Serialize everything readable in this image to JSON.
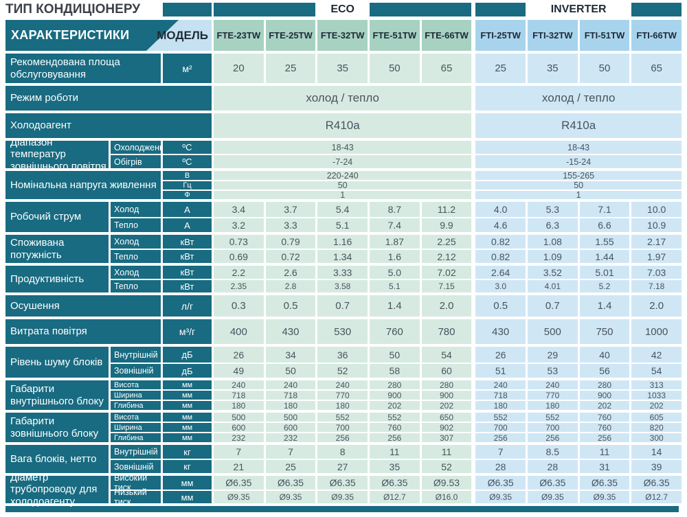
{
  "colors": {
    "teal": "#186b81",
    "eco_header": "#a7d1c1",
    "eco_cell": "#d7eae2",
    "inverter_header": "#a8d3ec",
    "inverter_cell": "#cfe6f5",
    "model_bg": "#c6e1f1",
    "dark_text": "#1d2b37",
    "data_text": "#47545c"
  },
  "header": {
    "type_label": "ТИП КОНДИЦІОНЕРУ",
    "groups": [
      {
        "name": "ECO",
        "cols": 5
      },
      {
        "name": "INVERTER",
        "cols": 4
      }
    ],
    "characteristics_label": "ХАРАКТЕРИСТИКИ",
    "model_label": "МОДЕЛЬ",
    "models": [
      "FTE-23TW",
      "FTE-25TW",
      "FTE-32TW",
      "FTE-51TW",
      "FTE-66TW",
      "FTI-25TW",
      "FTI-32TW",
      "FTI-51TW",
      "FTI-66TW"
    ]
  },
  "table": {
    "rows": [
      {
        "kind": "simple",
        "label": "Рекомендована площа обслуговування",
        "unit": "м²",
        "values": [
          "20",
          "25",
          "35",
          "50",
          "65",
          "25",
          "35",
          "50",
          "65"
        ]
      },
      {
        "kind": "merged",
        "label": "Режим роботи",
        "size": "lg",
        "values": [
          "холод / тепло",
          "холод / тепло"
        ]
      },
      {
        "kind": "merged",
        "label": "Холодоагент",
        "size": "lg",
        "values": [
          "R410a",
          "R410a"
        ]
      },
      {
        "kind": "subs-merged",
        "label": "Діапазон температур зовнішнього повітря",
        "subs": [
          {
            "name": "Охолодження",
            "unit": "ºС",
            "values": [
              "18-43",
              "18-43"
            ]
          },
          {
            "name": "Обігрів",
            "unit": "ºС",
            "values": [
              "-7-24",
              "-15-24"
            ]
          }
        ]
      },
      {
        "kind": "units-merged",
        "label": "Номінальна напруга живлення",
        "subs": [
          {
            "unit": "В",
            "values": [
              "220-240",
              "155-265"
            ]
          },
          {
            "unit": "Гц",
            "values": [
              "50",
              "50"
            ]
          },
          {
            "unit": "Ф",
            "values": [
              "1",
              "1"
            ]
          }
        ]
      },
      {
        "kind": "subs",
        "label": "Робочий струм",
        "subs": [
          {
            "name": "Холод",
            "unit": "А",
            "values": [
              "3.4",
              "3.7",
              "5.4",
              "8.7",
              "11.2",
              "4.0",
              "5.3",
              "7.1",
              "10.0"
            ]
          },
          {
            "name": "Тепло",
            "unit": "А",
            "values": [
              "3.2",
              "3.3",
              "5.1",
              "7.4",
              "9.9",
              "4.6",
              "6.3",
              "6.6",
              "10.9"
            ]
          }
        ]
      },
      {
        "kind": "subs",
        "label": "Споживана потужність",
        "subs": [
          {
            "name": "Холод",
            "unit": "кВт",
            "values": [
              "0.73",
              "0.79",
              "1.16",
              "1.87",
              "2.25",
              "0.82",
              "1.08",
              "1.55",
              "2.17"
            ]
          },
          {
            "name": "Тепло",
            "unit": "кВт",
            "values": [
              "0.69",
              "0.72",
              "1.34",
              "1.6",
              "2.12",
              "0.82",
              "1.09",
              "1.44",
              "1.97"
            ]
          }
        ]
      },
      {
        "kind": "subs",
        "label": "Продуктивність",
        "subs": [
          {
            "name": "Холод",
            "unit": "кВт",
            "values": [
              "2.2",
              "2.6",
              "3.33",
              "5.0",
              "7.02",
              "2.64",
              "3.52",
              "5.01",
              "7.03"
            ]
          },
          {
            "name": "Тепло",
            "unit": "кВт",
            "values": [
              "2.35",
              "2.8",
              "3.58",
              "5.1",
              "7.15",
              "3.0",
              "4.01",
              "5.2",
              "7.18"
            ]
          }
        ]
      },
      {
        "kind": "simple",
        "label": "Осушення",
        "unit": "л/г",
        "values": [
          "0.3",
          "0.5",
          "0.7",
          "1.4",
          "2.0",
          "0.5",
          "0.7",
          "1.4",
          "2.0"
        ]
      },
      {
        "kind": "simple",
        "label": "Витрата повітря",
        "unit": "м³/г",
        "values": [
          "400",
          "430",
          "530",
          "760",
          "780",
          "430",
          "500",
          "750",
          "1000"
        ]
      },
      {
        "kind": "subs",
        "label": "Рівень шуму блоків",
        "subs": [
          {
            "name": "Внутрішній",
            "unit": "дБ",
            "values": [
              "26",
              "34",
              "36",
              "50",
              "54",
              "26",
              "29",
              "40",
              "42"
            ]
          },
          {
            "name": "Зовнішній",
            "unit": "дБ",
            "values": [
              "49",
              "50",
              "52",
              "58",
              "60",
              "51",
              "53",
              "56",
              "54"
            ]
          }
        ]
      },
      {
        "kind": "subs",
        "label": "Габарити внутрішнього блоку",
        "subs": [
          {
            "name": "Висота",
            "unit": "мм",
            "values": [
              "240",
              "240",
              "240",
              "280",
              "280",
              "240",
              "240",
              "280",
              "313"
            ]
          },
          {
            "name": "Ширина",
            "unit": "мм",
            "values": [
              "718",
              "718",
              "770",
              "900",
              "900",
              "718",
              "770",
              "900",
              "1033"
            ]
          },
          {
            "name": "Глибина",
            "unit": "мм",
            "values": [
              "180",
              "180",
              "180",
              "202",
              "202",
              "180",
              "180",
              "202",
              "202"
            ]
          }
        ]
      },
      {
        "kind": "subs",
        "label": "Габарити зовнішнього блоку",
        "subs": [
          {
            "name": "Висота",
            "unit": "мм",
            "values": [
              "500",
              "500",
              "552",
              "552",
              "650",
              "552",
              "552",
              "760",
              "605"
            ]
          },
          {
            "name": "Ширина",
            "unit": "мм",
            "values": [
              "600",
              "600",
              "700",
              "760",
              "902",
              "700",
              "700",
              "760",
              "820"
            ]
          },
          {
            "name": "Глибина",
            "unit": "мм",
            "values": [
              "232",
              "232",
              "256",
              "256",
              "307",
              "256",
              "256",
              "256",
              "300"
            ]
          }
        ]
      },
      {
        "kind": "subs",
        "label": "Вага блоків, нетто",
        "subs": [
          {
            "name": "Внутрішній",
            "unit": "кг",
            "values": [
              "7",
              "7",
              "8",
              "11",
              "11",
              "7",
              "8.5",
              "11",
              "14"
            ]
          },
          {
            "name": "Зовнішній",
            "unit": "кг",
            "values": [
              "21",
              "25",
              "27",
              "35",
              "52",
              "28",
              "28",
              "31",
              "39"
            ]
          }
        ]
      },
      {
        "kind": "subs",
        "label": "Діаметр трубопроводу для холодоагенту",
        "subs": [
          {
            "name": "Високий тиск",
            "unit": "мм",
            "values": [
              "Ø6.35",
              "Ø6.35",
              "Ø6.35",
              "Ø6.35",
              "Ø9.53",
              "Ø6.35",
              "Ø6.35",
              "Ø6.35",
              "Ø6.35"
            ]
          },
          {
            "name": "Низький тиск",
            "unit": "мм",
            "values": [
              "Ø9.35",
              "Ø9.35",
              "Ø9.35",
              "Ø12.7",
              "Ø16.0",
              "Ø9.35",
              "Ø9.35",
              "Ø9.35",
              "Ø12.7"
            ]
          }
        ]
      }
    ]
  }
}
